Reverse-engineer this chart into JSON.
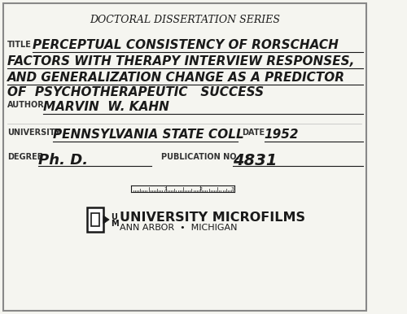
{
  "background_color": "#f5f5f0",
  "border_color": "#888888",
  "header": "DOCTORAL DISSERTATION SERIES",
  "title_label": "TITLE",
  "title_line1": "PERCEPTUAL CONSISTENCY OF RORSCHACH",
  "title_line2": "FACTORS WITH THERAPY INTERVIEW RESPONSES,",
  "title_line3": "AND GENERALIZATION CHANGE AS A PREDICTOR",
  "title_line4": "OF  PSYCHOTHERAPEUTIC   SUCCESS",
  "author_label": "AUTHOR",
  "author_value": "MARVIN  W. KAHN",
  "university_label": "UNIVERSITY",
  "university_value": "PENNSYLVANIA STATE COLL",
  "date_label": "DATE",
  "date_value": "1952",
  "degree_label": "DEGREE",
  "degree_value": "Ph. D.",
  "pubno_label": "PUBLICATION NO.",
  "pubno_value": "4831",
  "footer_line1": "UNIVERSITY MICROFILMS",
  "footer_line2": "ANN ARBOR  •  MICHIGAN",
  "text_color": "#1a1a1a",
  "label_color": "#333333"
}
